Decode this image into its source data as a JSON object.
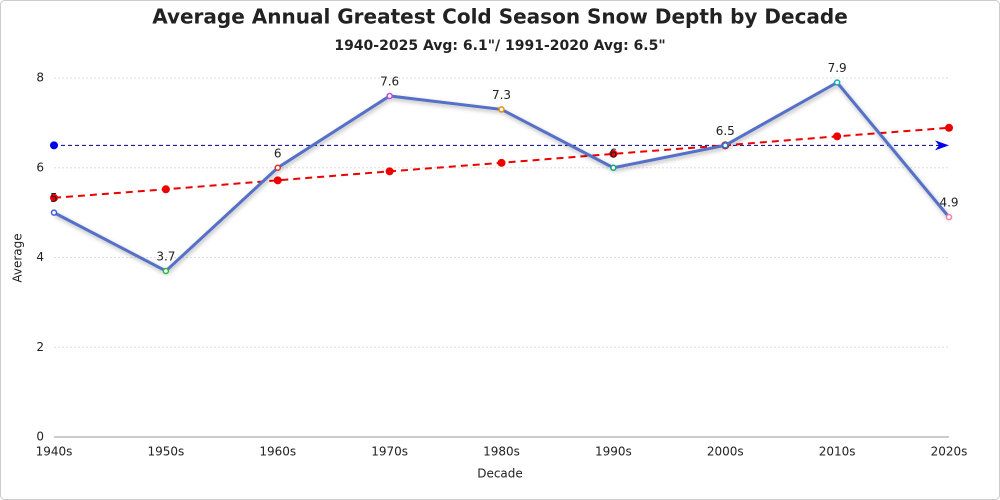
{
  "chart_data": {
    "type": "line",
    "title": "Average Annual Greatest Cold Season Snow Depth by Decade",
    "subtitle": "1940-2025 Avg: 6.1\"/ 1991-2020 Avg: 6.5\"",
    "x_label": "Decade",
    "y_label": "Average",
    "categories": [
      "1940s",
      "1950s",
      "1960s",
      "1970s",
      "1980s",
      "1990s",
      "2000s",
      "2010s",
      "2020s"
    ],
    "series": [
      {
        "color": "#5470c6",
        "values": [
          5,
          3.7,
          6,
          7.6,
          7.3,
          6,
          6.5,
          7.9,
          4.9
        ],
        "point_colors": [
          "#3b5bdb",
          "#2fb344",
          "#e03131",
          "#be4bdb",
          "#f08c00",
          "#0ca678",
          "#1c7ed6",
          "#15aabf",
          "#f783ac"
        ],
        "data_labels": true
      },
      {
        "color": "#ee0000",
        "values": [
          5.33,
          5.52,
          5.72,
          5.92,
          6.11,
          6.31,
          6.5,
          6.7,
          6.89
        ],
        "dashed": true
      }
    ],
    "reference_lines": [
      {
        "value": 6.5,
        "color": "#00008b"
      }
    ],
    "ylim": [
      0,
      8
    ],
    "yticks": [
      0,
      2,
      4,
      6,
      8
    ],
    "grid": true
  }
}
